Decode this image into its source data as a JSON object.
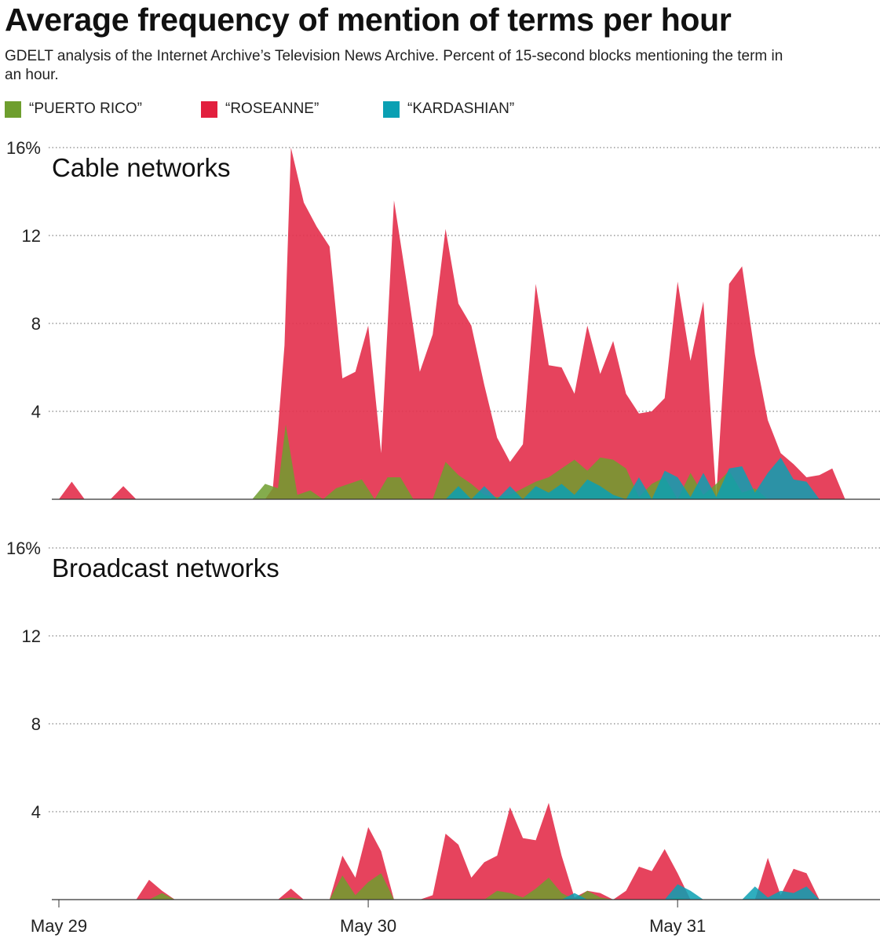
{
  "title": "Average frequency of mention of terms per hour",
  "subtitle": "GDELT analysis of the Internet Archive’s Television News Archive. Percent of 15-second blocks mentioning the term in an hour.",
  "legend": [
    {
      "label": "“PUERTO RICO”",
      "color": "#6e9e2e"
    },
    {
      "label": "“ROSEANNE”",
      "color": "#e21f3e"
    },
    {
      "label": "“KARDASHIAN”",
      "color": "#0aa0b3"
    }
  ],
  "chart_data": [
    {
      "type": "area",
      "title": "Cable networks",
      "x_unit": "hours since May 29 00:00",
      "y_unit": "percent",
      "ylim": [
        0,
        16
      ],
      "yticks": [
        16,
        12,
        8,
        4
      ],
      "ytick_labels": [
        "16%",
        "12",
        "8",
        "4"
      ],
      "xticks": [
        0,
        24,
        48
      ],
      "xtick_labels": [
        "May 29",
        "May 30",
        "May 31"
      ],
      "series": [
        {
          "name": "“ROSEANNE”",
          "color": "#e4334f",
          "points": [
            [
              0,
              0
            ],
            [
              1,
              0.8
            ],
            [
              2,
              0
            ],
            [
              4,
              0
            ],
            [
              5,
              0.6
            ],
            [
              6,
              0
            ],
            [
              16,
              0
            ],
            [
              16.6,
              0.5
            ],
            [
              17,
              3.2
            ],
            [
              17.5,
              7
            ],
            [
              18,
              16
            ],
            [
              19,
              13.5
            ],
            [
              20,
              12.4
            ],
            [
              21,
              11.5
            ],
            [
              22,
              5.5
            ],
            [
              23,
              5.8
            ],
            [
              24,
              7.9
            ],
            [
              25,
              2.1
            ],
            [
              26,
              13.6
            ],
            [
              27,
              9.8
            ],
            [
              28,
              5.8
            ],
            [
              29,
              7.5
            ],
            [
              30,
              12.3
            ],
            [
              31,
              8.9
            ],
            [
              32,
              7.9
            ],
            [
              33,
              5.2
            ],
            [
              34,
              2.8
            ],
            [
              35,
              1.7
            ],
            [
              36,
              2.5
            ],
            [
              37,
              9.8
            ],
            [
              38,
              6.1
            ],
            [
              39,
              6.0
            ],
            [
              40,
              4.8
            ],
            [
              41,
              7.9
            ],
            [
              42,
              5.7
            ],
            [
              43,
              7.2
            ],
            [
              44,
              4.8
            ],
            [
              45,
              3.9
            ],
            [
              46,
              4.0
            ],
            [
              47,
              4.6
            ],
            [
              48,
              9.9
            ],
            [
              49,
              6.3
            ],
            [
              50,
              9.0
            ],
            [
              51,
              0.1
            ],
            [
              52,
              9.8
            ],
            [
              53,
              10.6
            ],
            [
              54,
              6.6
            ],
            [
              55,
              3.6
            ],
            [
              56,
              2.1
            ],
            [
              57,
              1.6
            ],
            [
              58,
              1.0
            ],
            [
              59,
              1.1
            ],
            [
              60,
              1.4
            ],
            [
              61,
              0
            ]
          ]
        },
        {
          "name": "“PUERTO RICO”",
          "color": "#6e9e2e",
          "points": [
            [
              15,
              0
            ],
            [
              16,
              0.7
            ],
            [
              17,
              0.5
            ],
            [
              17.6,
              3.4
            ],
            [
              18.5,
              0.2
            ],
            [
              19.5,
              0.4
            ],
            [
              20.5,
              0
            ],
            [
              21.5,
              0.5
            ],
            [
              22.5,
              0.7
            ],
            [
              23.5,
              0.9
            ],
            [
              24.5,
              0
            ],
            [
              25.5,
              1.0
            ],
            [
              26.5,
              1.0
            ],
            [
              27.5,
              0
            ],
            [
              29,
              0
            ],
            [
              30,
              1.7
            ],
            [
              31,
              1.1
            ],
            [
              32,
              0.7
            ],
            [
              33,
              0.2
            ],
            [
              34,
              0.1
            ],
            [
              35,
              0.2
            ],
            [
              36,
              0.5
            ],
            [
              37,
              0.8
            ],
            [
              38,
              1.0
            ],
            [
              39,
              1.4
            ],
            [
              40,
              1.8
            ],
            [
              41,
              1.3
            ],
            [
              42,
              1.9
            ],
            [
              43,
              1.8
            ],
            [
              44,
              1.4
            ],
            [
              45,
              0.1
            ],
            [
              46,
              0.7
            ],
            [
              47,
              1.0
            ],
            [
              48,
              0
            ],
            [
              49,
              1.2
            ],
            [
              50,
              0.2
            ],
            [
              51,
              0.7
            ],
            [
              52,
              1.3
            ],
            [
              53,
              0.3
            ],
            [
              54,
              0.5
            ],
            [
              55,
              0
            ]
          ]
        },
        {
          "name": "“KARDASHIAN”",
          "color": "#0aa0b3",
          "points": [
            [
              30,
              0
            ],
            [
              31,
              0.6
            ],
            [
              32,
              0
            ],
            [
              33,
              0.6
            ],
            [
              34,
              0
            ],
            [
              35,
              0.6
            ],
            [
              36,
              0
            ],
            [
              37,
              0.6
            ],
            [
              38,
              0.3
            ],
            [
              39,
              0.7
            ],
            [
              40,
              0.2
            ],
            [
              41,
              0.9
            ],
            [
              42,
              0.6
            ],
            [
              43,
              0.2
            ],
            [
              44,
              0
            ],
            [
              45,
              1.0
            ],
            [
              46,
              0
            ],
            [
              47,
              1.3
            ],
            [
              48,
              1.0
            ],
            [
              49,
              0.1
            ],
            [
              50,
              1.2
            ],
            [
              51,
              0.1
            ],
            [
              52,
              1.4
            ],
            [
              53,
              1.5
            ],
            [
              54,
              0.3
            ],
            [
              55,
              1.2
            ],
            [
              56,
              1.9
            ],
            [
              57,
              0.9
            ],
            [
              58,
              0.8
            ],
            [
              59,
              0
            ]
          ]
        }
      ]
    },
    {
      "type": "area",
      "title": "Broadcast networks",
      "x_unit": "hours since May 29 00:00",
      "y_unit": "percent",
      "ylim": [
        0,
        16
      ],
      "yticks": [
        16,
        12,
        8,
        4
      ],
      "ytick_labels": [
        "16%",
        "12",
        "8",
        "4"
      ],
      "xticks": [
        0,
        24,
        48
      ],
      "xtick_labels": [
        "May 29",
        "May 30",
        "May 31"
      ],
      "series": [
        {
          "name": "“ROSEANNE”",
          "color": "#e4334f",
          "points": [
            [
              0,
              0
            ],
            [
              6,
              0
            ],
            [
              7,
              0.9
            ],
            [
              8,
              0.4
            ],
            [
              9,
              0
            ],
            [
              17,
              0
            ],
            [
              18,
              0.5
            ],
            [
              19,
              0
            ],
            [
              21,
              0
            ],
            [
              22,
              2.0
            ],
            [
              23,
              1.0
            ],
            [
              24,
              3.3
            ],
            [
              25,
              2.2
            ],
            [
              26,
              0
            ],
            [
              28,
              0
            ],
            [
              29,
              0.2
            ],
            [
              30,
              3.0
            ],
            [
              31,
              2.5
            ],
            [
              32,
              1.0
            ],
            [
              33,
              1.7
            ],
            [
              34,
              2.0
            ],
            [
              35,
              4.2
            ],
            [
              36,
              2.8
            ],
            [
              37,
              2.7
            ],
            [
              38,
              4.4
            ],
            [
              39,
              2.0
            ],
            [
              40,
              0.1
            ],
            [
              41,
              0.4
            ],
            [
              42,
              0.3
            ],
            [
              43,
              0
            ],
            [
              44,
              0.4
            ],
            [
              45,
              1.5
            ],
            [
              46,
              1.3
            ],
            [
              47,
              2.3
            ],
            [
              48,
              1.2
            ],
            [
              49,
              0
            ],
            [
              54,
              0
            ],
            [
              55,
              1.9
            ],
            [
              56,
              0.2
            ],
            [
              57,
              1.4
            ],
            [
              58,
              1.2
            ],
            [
              59,
              0
            ]
          ]
        },
        {
          "name": "“PUERTO RICO”",
          "color": "#6e9e2e",
          "points": [
            [
              7,
              0
            ],
            [
              8,
              0.3
            ],
            [
              9,
              0
            ],
            [
              17,
              0
            ],
            [
              18,
              0.1
            ],
            [
              19,
              0
            ],
            [
              21,
              0
            ],
            [
              22,
              1.1
            ],
            [
              23,
              0.2
            ],
            [
              24,
              0.8
            ],
            [
              25,
              1.2
            ],
            [
              26,
              0
            ],
            [
              33,
              0
            ],
            [
              34,
              0.4
            ],
            [
              35,
              0.3
            ],
            [
              36,
              0.1
            ],
            [
              37,
              0.5
            ],
            [
              38,
              1.0
            ],
            [
              39,
              0.3
            ],
            [
              40,
              0
            ],
            [
              41,
              0.4
            ],
            [
              42,
              0.1
            ],
            [
              43,
              0
            ],
            [
              47,
              0
            ],
            [
              48,
              0.1
            ],
            [
              49,
              0
            ]
          ]
        },
        {
          "name": "“KARDASHIAN”",
          "color": "#0aa0b3",
          "points": [
            [
              39,
              0
            ],
            [
              40,
              0.3
            ],
            [
              41,
              0
            ],
            [
              47,
              0
            ],
            [
              48,
              0.7
            ],
            [
              49,
              0.4
            ],
            [
              50,
              0
            ],
            [
              53,
              0
            ],
            [
              54,
              0.6
            ],
            [
              55,
              0.1
            ],
            [
              56,
              0.4
            ],
            [
              57,
              0.3
            ],
            [
              58,
              0.6
            ],
            [
              59,
              0
            ]
          ]
        }
      ]
    }
  ]
}
